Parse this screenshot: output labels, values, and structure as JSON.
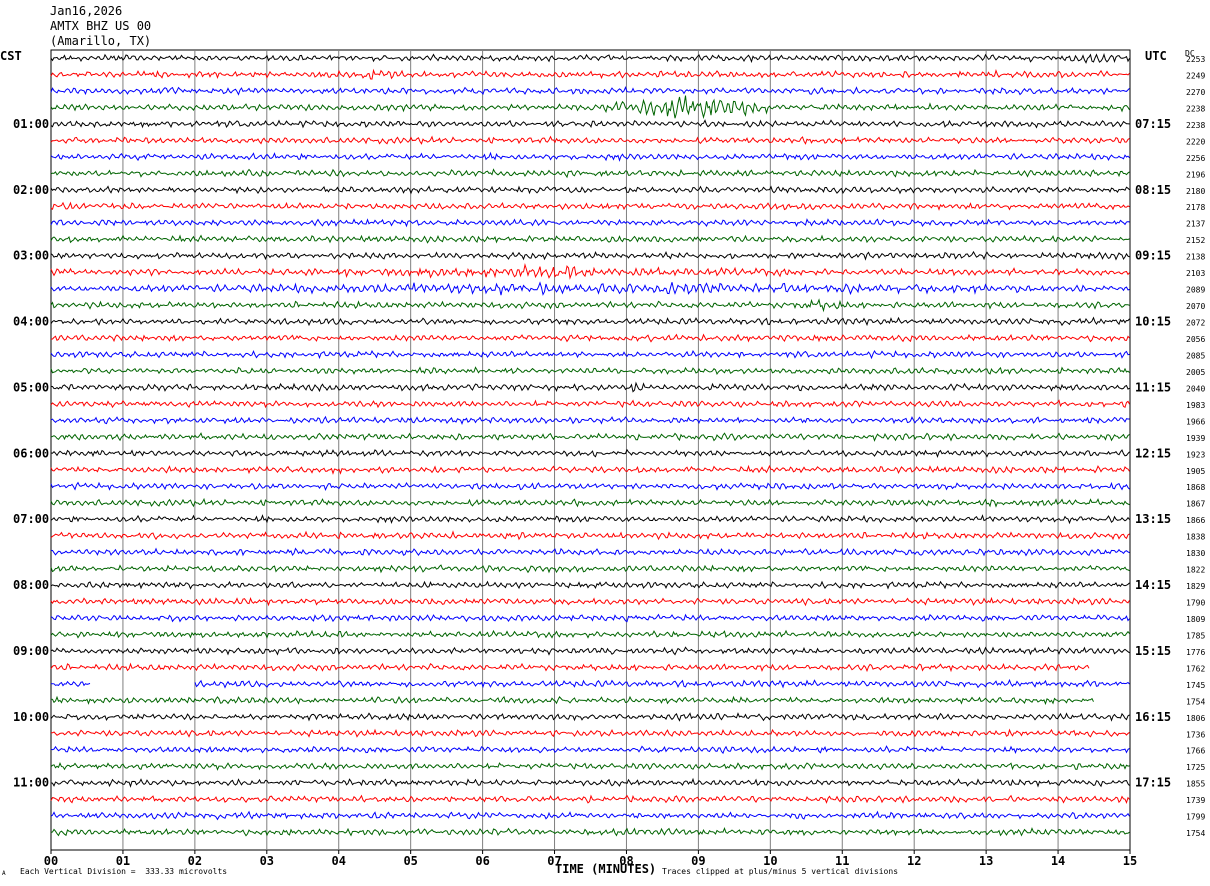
{
  "header": {
    "date": "Jan16,2026",
    "station": "AMTX BHZ US 00",
    "location": "(Amarillo, TX)"
  },
  "left_timezone": "CST",
  "right_timezone": "UTC",
  "dc_label": "DC",
  "footer": {
    "scale_note": "Each Vertical Division =  333.33 microvolts",
    "clip_note": "Traces clipped at plus/minus 5 vertical divisions",
    "corner_mark": "A"
  },
  "colors": {
    "trace_cycle": [
      "#000000",
      "#ff0000",
      "#0000ff",
      "#006400"
    ],
    "grid": "#7f7f7f"
  },
  "chart_data": {
    "type": "line",
    "xlabel": "TIME (MINUTES)",
    "xlim": [
      0,
      15
    ],
    "x_tick_labels": [
      "00",
      "01",
      "02",
      "03",
      "04",
      "05",
      "06",
      "07",
      "08",
      "09",
      "10",
      "11",
      "12",
      "13",
      "14",
      "15"
    ],
    "left_hour_labels": [
      "01:00",
      "02:00",
      "03:00",
      "04:00",
      "05:00",
      "06:00",
      "07:00",
      "08:00",
      "09:00",
      "10:00",
      "11:00"
    ],
    "right_hour_labels": [
      "07:15",
      "08:15",
      "09:15",
      "10:15",
      "11:15",
      "12:15",
      "13:15",
      "14:15",
      "15:15",
      "16:15",
      "17:15"
    ],
    "trace_count": 48,
    "dc_values": [
      "2253",
      "2249",
      "2270",
      "2238",
      "2238",
      "2220",
      "2256",
      "2196",
      "2180",
      "2178",
      "2137",
      "2152",
      "2138",
      "2103",
      "2089",
      "2070",
      "2072",
      "2056",
      "2085",
      "2005",
      "2040",
      "1983",
      "1966",
      "1939",
      "1923",
      "1905",
      "1868",
      "1867",
      "1866",
      "1838",
      "1830",
      "1822",
      "1829",
      "1790",
      "1809",
      "1785",
      "1776",
      "1762",
      "1745",
      "1754",
      "1806",
      "1736",
      "1766",
      "1725",
      "1855",
      "1739",
      "1799",
      "1754"
    ],
    "events": [
      {
        "trace": 0,
        "minute_start": 13.9,
        "minute_end": 15.0,
        "amplitude": "elevated"
      },
      {
        "trace": 1,
        "minute_start": 3.9,
        "minute_end": 5.2,
        "amplitude": "elevated"
      },
      {
        "trace": 3,
        "minute_start": 7.7,
        "minute_end": 10.0,
        "amplitude": "high"
      },
      {
        "trace": 13,
        "minute_start": 2.9,
        "minute_end": 11.0,
        "amplitude": "elevated"
      },
      {
        "trace": 14,
        "minute_start": 0.0,
        "minute_end": 15.0,
        "amplitude": "elevated"
      },
      {
        "trace": 15,
        "minute_start": 10.2,
        "minute_end": 11.2,
        "amplitude": "elevated"
      },
      {
        "trace": 20,
        "minute_start": 7.9,
        "minute_end": 8.3,
        "amplitude": "elevated"
      }
    ],
    "gaps": [
      {
        "trace": 38,
        "minute_start": 0.55,
        "minute_end": 2.0
      }
    ],
    "short_traces": [
      {
        "trace": 37,
        "minute_end": 14.45
      },
      {
        "trace": 39,
        "minute_end": 14.5
      }
    ]
  }
}
